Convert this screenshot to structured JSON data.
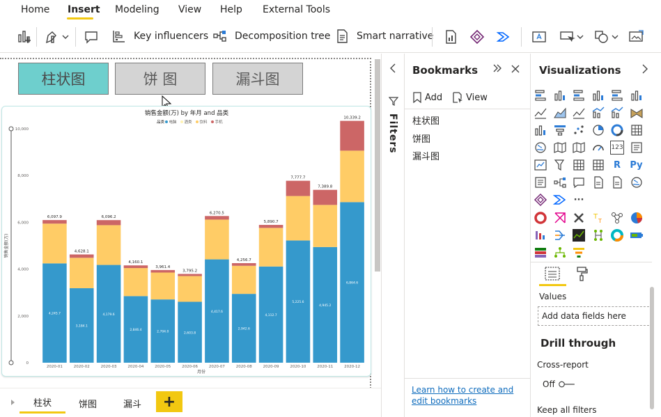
{
  "ribbon": {
    "tabs": [
      {
        "label": "Home"
      },
      {
        "label": "Insert"
      },
      {
        "label": "Modeling"
      },
      {
        "label": "View"
      },
      {
        "label": "Help"
      },
      {
        "label": "External Tools"
      }
    ],
    "active_tab": "Insert",
    "toolbar": {
      "key_influencers": "Key influencers",
      "decomposition_tree": "Decomposition tree",
      "smart_narrative": "Smart narrative"
    }
  },
  "canvas": {
    "bookmark_buttons": [
      "柱状图",
      "饼 图",
      "漏斗图"
    ],
    "active_button": "柱状图"
  },
  "chart_data": {
    "type": "bar",
    "stacked": true,
    "title": "销售金额(万) by 年月 and 品类",
    "legend_title": "品类",
    "legend": [
      "电脑",
      "酒类",
      "饮料",
      "手机"
    ],
    "xlabel": "月份",
    "ylabel": "销售金额(万)",
    "ylim": [
      0,
      10000
    ],
    "yticks": [
      "0",
      "2,000",
      "4,000",
      "6,000",
      "8,000",
      "10,000"
    ],
    "categories": [
      "2020-01",
      "2020-02",
      "2020-03",
      "2020-04",
      "2020-05",
      "2020-06",
      "2020-07",
      "2020-08",
      "2020-09",
      "2020-10",
      "2020-11",
      "2020-12"
    ],
    "series": [
      {
        "name": "电脑",
        "color": "#3599cc",
        "values": [
          4245.7,
          3184.1,
          4179.6,
          2846.4,
          2704.0,
          2603.8,
          4417.6,
          2942.6,
          4112.7,
          5225.6,
          4945.2,
          6864.6
        ]
      },
      {
        "name": "酒类",
        "color": "#fff3b4",
        "values": [
          0,
          0,
          0,
          0,
          0,
          0,
          0,
          0,
          0,
          0,
          0,
          0
        ]
      },
      {
        "name": "饮料",
        "color": "#ffcc66",
        "values": [
          1700,
          1300,
          1700,
          1200,
          1150,
          1100,
          1700,
          1200,
          1650,
          1900,
          1800,
          2200
        ]
      },
      {
        "name": "手机",
        "color": "#cc6666",
        "values": [
          152.2,
          144.0,
          216.6,
          113.7,
          107.4,
          91.4,
          152.9,
          114.1,
          128.0,
          652.1,
          644.6,
          1274.6
        ]
      }
    ],
    "totals": [
      "6,097.9",
      "4,628.1",
      "6,096.2",
      "4,160.1",
      "3,961.4",
      "3,795.2",
      "6,270.5",
      "4,256.7",
      "5,890.7",
      "7,777.7",
      "7,389.8",
      "10,339.2"
    ],
    "inner_labels": [
      "4,245.7",
      "3,184.1",
      "4,179.6",
      "2,846.4",
      "2,704.0",
      "2,603.8",
      "4,417.6",
      "2,942.6",
      "4,112.7",
      "5,225.6",
      "4,945.2",
      "6,864.6"
    ]
  },
  "pages": {
    "tabs": [
      "柱状",
      "饼图",
      "漏斗"
    ],
    "active": "柱状",
    "add_label": "+"
  },
  "filters": {
    "label": "Filters"
  },
  "bookmarks": {
    "title": "Bookmarks",
    "add_label": "Add",
    "view_label": "View",
    "items": [
      "柱状图",
      "饼图",
      "漏斗图"
    ],
    "help_link": "Learn how to create and edit bookmarks"
  },
  "visualizations": {
    "title": "Visualizations",
    "values_label": "Values",
    "drop_placeholder": "Add data fields here",
    "drill_through": "Drill through",
    "cross_report": "Cross-report",
    "off_label": "Off",
    "keep_all_filters": "Keep all filters",
    "icon_text_r": "R",
    "icon_text_py": "Py",
    "icon_text_123": "123",
    "more": "···"
  }
}
